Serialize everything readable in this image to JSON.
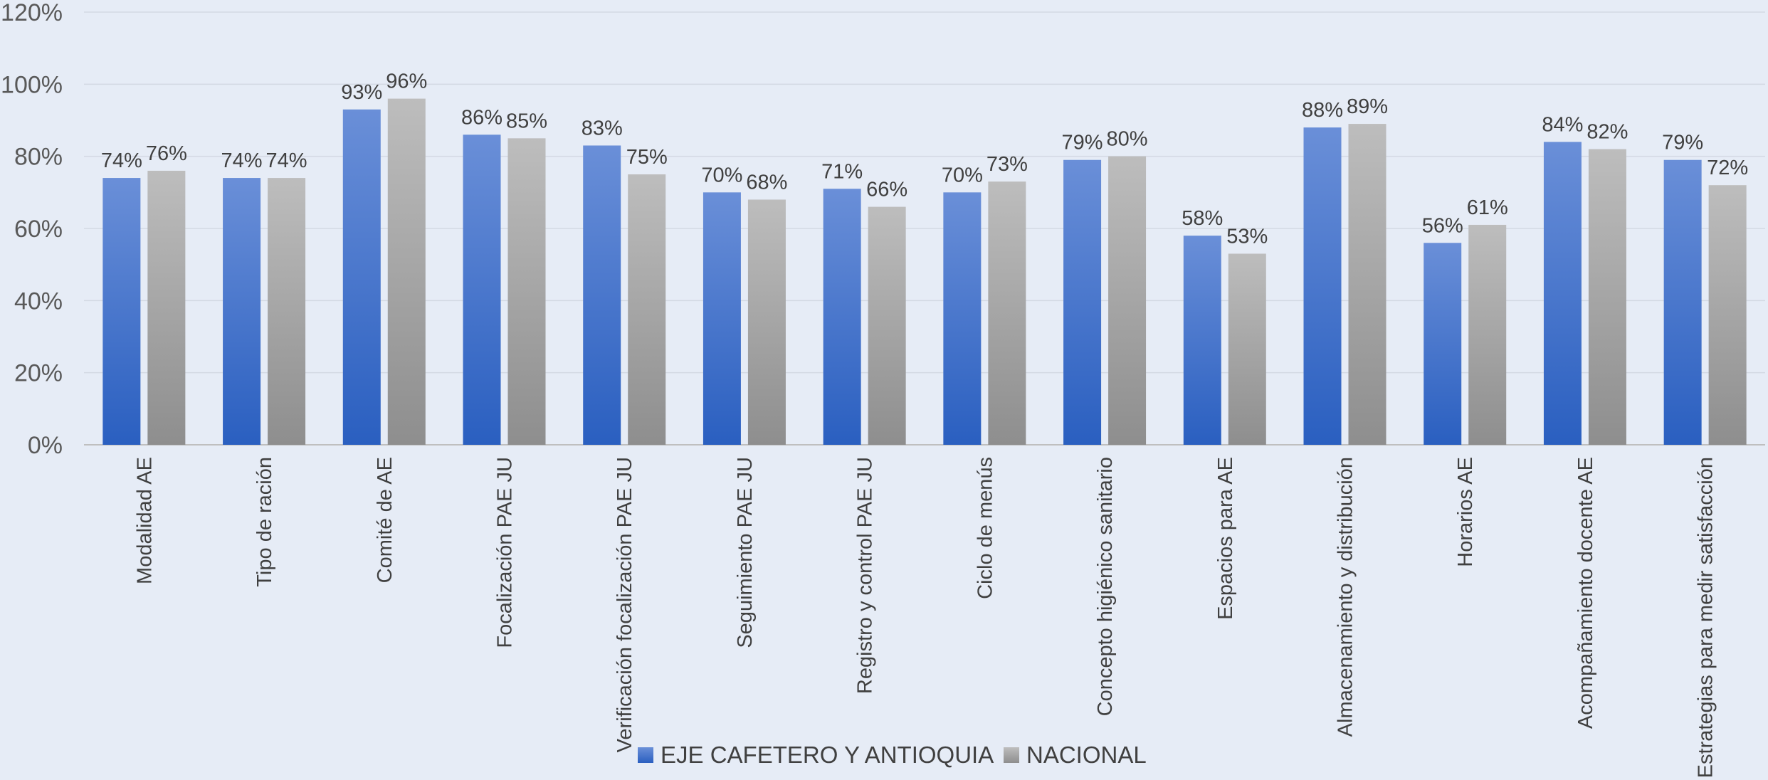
{
  "chart_data": {
    "type": "bar",
    "title": "",
    "xlabel": "",
    "ylabel": "",
    "ylim": [
      0,
      1.2
    ],
    "ytick_values": [
      0,
      0.2,
      0.4,
      0.6,
      0.8,
      1.0,
      1.2
    ],
    "ytick_labels": [
      "0%",
      "20%",
      "40%",
      "60%",
      "80%",
      "100%",
      "120%"
    ],
    "grid": true,
    "legend_position": "bottom",
    "categories": [
      "Modalidad AE",
      "Tipo de ración",
      "Comité de AE",
      "Focalización PAE JU",
      "Verificación focalización PAE JU",
      "Seguimiento PAE JU",
      "Registro y control PAE JU",
      "Ciclo de menús",
      "Concepto higiénico sanitario",
      "Espacios para AE",
      "Almacenamiento y distribución",
      "Horarios AE",
      "Acompañamiento docente AE",
      "Estrategias para medir satisfacción"
    ],
    "series": [
      {
        "name": "EJE CAFETERO Y ANTIOQUIA",
        "color": "#3b6cc8",
        "values": [
          0.74,
          0.74,
          0.93,
          0.86,
          0.83,
          0.7,
          0.71,
          0.7,
          0.79,
          0.58,
          0.88,
          0.56,
          0.84,
          0.79
        ],
        "labels": [
          "74%",
          "74%",
          "93%",
          "86%",
          "83%",
          "70%",
          "71%",
          "70%",
          "79%",
          "58%",
          "88%",
          "56%",
          "84%",
          "79%"
        ]
      },
      {
        "name": "NACIONAL",
        "color": "#a6a6a6",
        "values": [
          0.76,
          0.74,
          0.96,
          0.85,
          0.75,
          0.68,
          0.66,
          0.73,
          0.8,
          0.53,
          0.89,
          0.61,
          0.82,
          0.72
        ],
        "labels": [
          "76%",
          "74%",
          "96%",
          "85%",
          "75%",
          "68%",
          "66%",
          "73%",
          "80%",
          "53%",
          "89%",
          "61%",
          "82%",
          "72%"
        ]
      }
    ]
  }
}
